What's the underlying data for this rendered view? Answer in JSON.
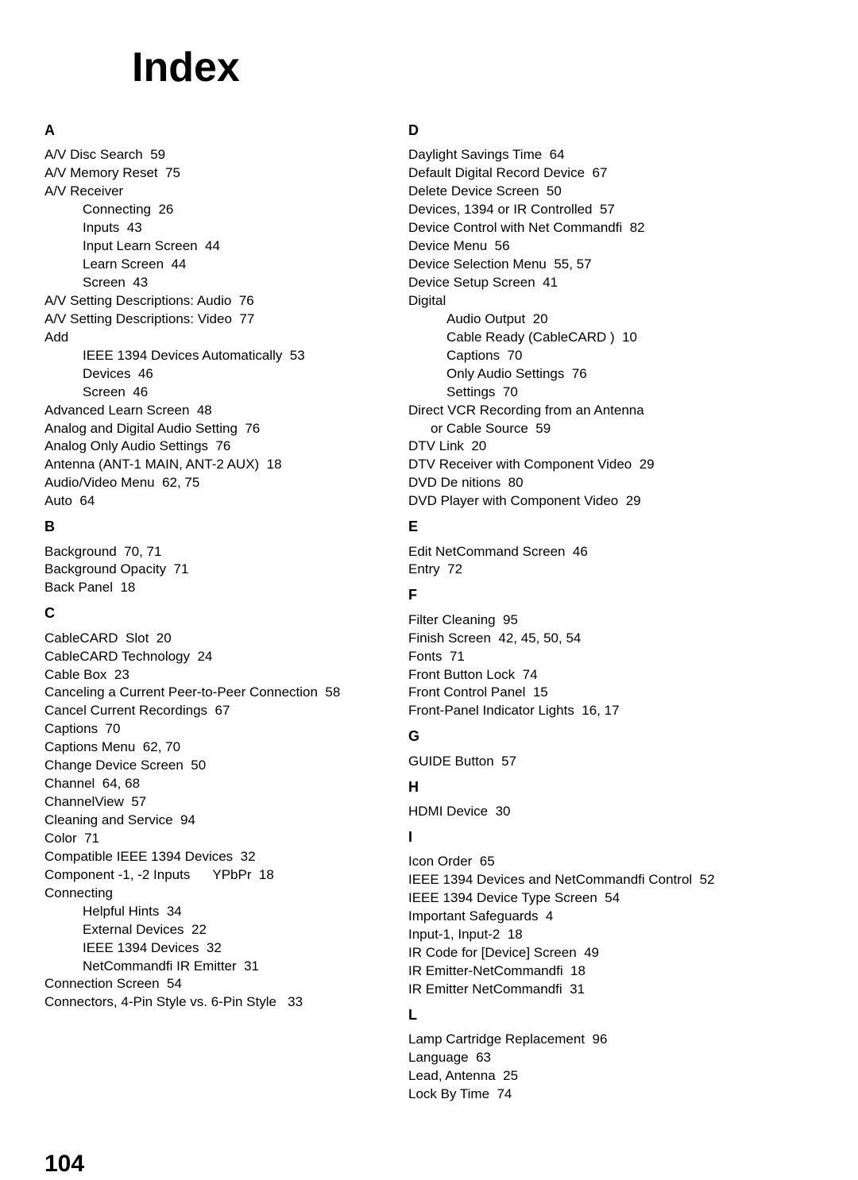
{
  "title": "Index",
  "pageNumber": "104",
  "leftColumn": [
    {
      "letter": "A",
      "entries": [
        {
          "t": "A/V Disc Search  59"
        },
        {
          "t": "A/V Memory Reset  75"
        },
        {
          "t": "A/V Receiver"
        },
        {
          "t": "Connecting  26",
          "indent": 1
        },
        {
          "t": "Inputs  43",
          "indent": 1
        },
        {
          "t": "Input Learn Screen  44",
          "indent": 1
        },
        {
          "t": "Learn Screen  44",
          "indent": 1
        },
        {
          "t": "Screen  43",
          "indent": 1
        },
        {
          "t": "A/V Setting Descriptions: Audio  76"
        },
        {
          "t": "A/V Setting Descriptions: Video  77"
        },
        {
          "t": "Add"
        },
        {
          "t": "IEEE 1394 Devices Automatically  53",
          "indent": 1
        },
        {
          "t": "Devices  46",
          "indent": 1
        },
        {
          "t": "Screen  46",
          "indent": 1
        },
        {
          "t": "Advanced Learn Screen  48"
        },
        {
          "t": "Analog and Digital Audio Setting  76"
        },
        {
          "t": "Analog Only Audio Settings  76"
        },
        {
          "t": "Antenna (ANT-1 MAIN, ANT-2 AUX)  18"
        },
        {
          "t": "Audio/Video Menu  62, 75"
        },
        {
          "t": "Auto  64"
        }
      ]
    },
    {
      "letter": "B",
      "entries": [
        {
          "t": "Background  70, 71"
        },
        {
          "t": "Background Opacity  71"
        },
        {
          "t": "Back Panel  18"
        }
      ]
    },
    {
      "letter": "C",
      "entries": [
        {
          "t": "CableCARD  Slot  20"
        },
        {
          "t": "CableCARD Technology  24"
        },
        {
          "t": "Cable Box  23"
        },
        {
          "t": "Canceling a Current Peer-to-Peer Connection  58"
        },
        {
          "t": "Cancel Current Recordings  67"
        },
        {
          "t": "Captions  70"
        },
        {
          "t": "Captions Menu  62, 70"
        },
        {
          "t": "Change Device Screen  50"
        },
        {
          "t": "Channel  64, 68"
        },
        {
          "t": "ChannelView  57"
        },
        {
          "t": "Cleaning and Service  94"
        },
        {
          "t": "Color  71"
        },
        {
          "t": "Compatible IEEE 1394 Devices  32"
        },
        {
          "t": "Component -1, -2 Inputs      YPbPr  18"
        },
        {
          "t": "Connecting"
        },
        {
          "t": "Helpful Hints  34",
          "indent": 1
        },
        {
          "t": "External Devices  22",
          "indent": 1
        },
        {
          "t": "IEEE 1394 Devices  32",
          "indent": 1
        },
        {
          "t": "NetCommandﬁ IR Emitter  31",
          "indent": 1
        },
        {
          "t": "Connection Screen  54"
        },
        {
          "t": "Connectors, 4-Pin Style vs. 6-Pin Style   33"
        }
      ]
    }
  ],
  "rightColumn": [
    {
      "letter": "D",
      "entries": [
        {
          "t": "Daylight Savings Time  64"
        },
        {
          "t": "Default Digital Record Device  67"
        },
        {
          "t": "Delete Device Screen  50"
        },
        {
          "t": "Devices, 1394 or IR Controlled  57"
        },
        {
          "t": "Device Control with Net Commandﬁ  82"
        },
        {
          "t": "Device Menu  56"
        },
        {
          "t": "Device Selection Menu  55, 57"
        },
        {
          "t": "Device Setup Screen  41"
        },
        {
          "t": "Digital"
        },
        {
          "t": "Audio Output  20",
          "indent": 1
        },
        {
          "t": "Cable Ready (CableCARD )  10",
          "indent": 1
        },
        {
          "t": "Captions  70",
          "indent": 1
        },
        {
          "t": "Only Audio Settings  76",
          "indent": 1
        },
        {
          "t": "Settings  70",
          "indent": 1
        },
        {
          "t": "Direct VCR Recording from an Antenna"
        },
        {
          "t": "or Cable Source  59",
          "indent": 2
        },
        {
          "t": "DTV Link  20"
        },
        {
          "t": "DTV Receiver with Component Video  29"
        },
        {
          "t": "DVD De nitions  80"
        },
        {
          "t": "DVD Player with Component Video  29"
        }
      ]
    },
    {
      "letter": "E",
      "entries": [
        {
          "t": "Edit NetCommand Screen  46"
        },
        {
          "t": "Entry  72"
        }
      ]
    },
    {
      "letter": "F",
      "entries": [
        {
          "t": "Filter Cleaning  95"
        },
        {
          "t": "Finish Screen  42, 45, 50, 54"
        },
        {
          "t": "Fonts  71"
        },
        {
          "t": "Front Button Lock  74"
        },
        {
          "t": "Front Control Panel  15"
        },
        {
          "t": "Front-Panel Indicator Lights  16, 17"
        }
      ]
    },
    {
      "letter": "G",
      "entries": [
        {
          "t": "GUIDE Button  57"
        }
      ]
    },
    {
      "letter": "H",
      "entries": [
        {
          "t": "HDMI Device  30"
        }
      ]
    },
    {
      "letter": "I",
      "entries": [
        {
          "t": "Icon Order  65"
        },
        {
          "t": "IEEE 1394 Devices and NetCommandﬁ Control  52"
        },
        {
          "t": "IEEE 1394 Device Type Screen  54"
        },
        {
          "t": "Important Safeguards  4"
        },
        {
          "t": "Input-1, Input-2  18"
        },
        {
          "t": "IR Code for [Device] Screen  49"
        },
        {
          "t": "IR Emitter-NetCommandﬁ  18"
        },
        {
          "t": "IR Emitter NetCommandﬁ  31"
        }
      ]
    },
    {
      "letter": "L",
      "entries": [
        {
          "t": "Lamp Cartridge Replacement  96"
        },
        {
          "t": "Language  63"
        },
        {
          "t": "Lead, Antenna  25"
        },
        {
          "t": "Lock By Time  74"
        }
      ]
    }
  ]
}
